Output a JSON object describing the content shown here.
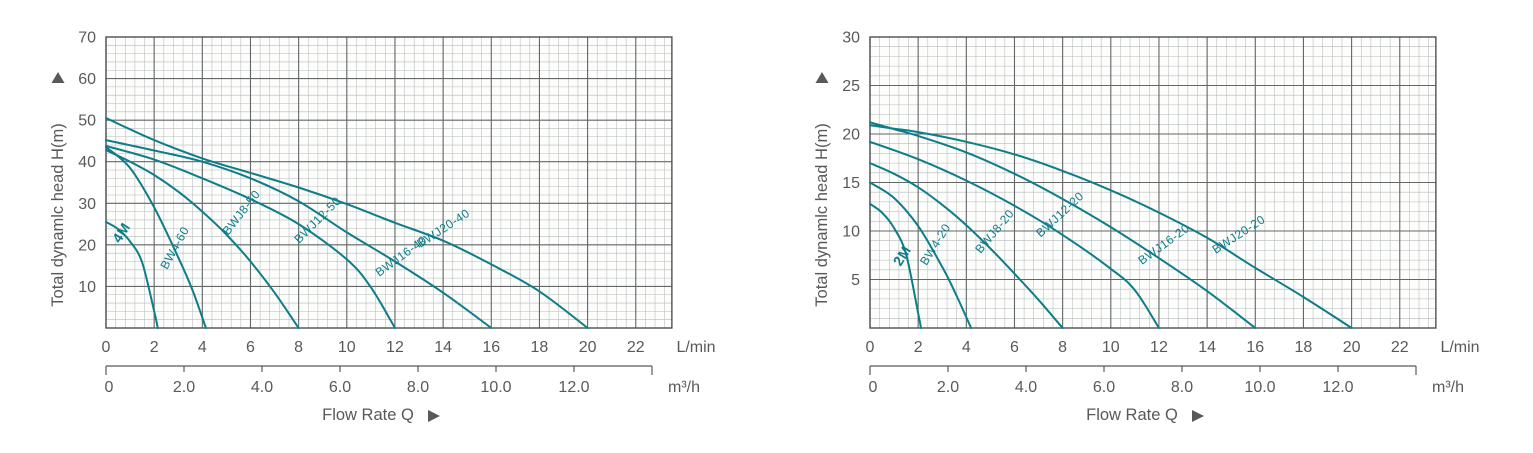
{
  "page": {
    "background": "#ffffff"
  },
  "colors": {
    "curve": "#0e7d8a",
    "axis_text": "#58595b",
    "major_grid": "#636768",
    "minor_grid": "#b6bcbb",
    "border": "#4d5152",
    "plot_bg": "#fdfdfc"
  },
  "chart_data": [
    {
      "type": "line",
      "title": "",
      "y_axis_label": "Total dynamlc head H(m)",
      "x_axis_label": "Flow Rate Q",
      "xlabel_unit_primary": "L/min",
      "xlabel_unit_secondary": "m³/h",
      "ylim": [
        0,
        70
      ],
      "xlim": [
        0,
        23.5
      ],
      "y_major_step": 10,
      "y_minor_step": 2,
      "x_major_step": 2,
      "x_minor_step": 0.4,
      "y_ticks": [
        70,
        60,
        50,
        40,
        30,
        20,
        10
      ],
      "x_ticks": [
        0,
        2,
        4,
        6,
        8,
        10,
        12,
        14,
        16,
        18,
        20,
        22
      ],
      "secondary_ticks": [
        "0",
        "2.0",
        "4.0",
        "6.0",
        "8.0",
        "10.0",
        "12.0"
      ],
      "grid": true,
      "legend_position": "inline-curve-labels",
      "series": [
        {
          "name": "4M",
          "bold": true,
          "points": [
            [
              0,
              25.5
            ],
            [
              0.5,
              23.8
            ],
            [
              1,
              20.8
            ],
            [
              1.5,
              15.8
            ],
            [
              2.0,
              4
            ],
            [
              2.15,
              0
            ]
          ],
          "label": {
            "x": 0.8,
            "y": 22.3,
            "angle": -57
          }
        },
        {
          "name": "BW4-60",
          "bold": false,
          "points": [
            [
              0,
              43.5
            ],
            [
              1,
              38.5
            ],
            [
              2,
              29
            ],
            [
              3,
              17
            ],
            [
              3.6,
              9
            ],
            [
              4.15,
              0
            ]
          ],
          "label": {
            "x": 3.0,
            "y": 18.8,
            "angle": -61
          }
        },
        {
          "name": "BWJ8-50",
          "bold": false,
          "points": [
            [
              0,
              42.8
            ],
            [
              1,
              40
            ],
            [
              2,
              36.8
            ],
            [
              3,
              32.8
            ],
            [
              4,
              28
            ],
            [
              5,
              22.5
            ],
            [
              6,
              16
            ],
            [
              7,
              8.5
            ],
            [
              8,
              0
            ]
          ],
          "label": {
            "x": 5.75,
            "y": 27.2,
            "angle": -52
          }
        },
        {
          "name": "BWJ12-50",
          "bold": false,
          "points": [
            [
              0,
              43.8
            ],
            [
              2,
              40.5
            ],
            [
              4,
              36
            ],
            [
              6,
              31
            ],
            [
              8,
              25
            ],
            [
              10,
              16.5
            ],
            [
              11,
              9.8
            ],
            [
              12,
              0
            ]
          ],
          "label": {
            "x": 8.9,
            "y": 25.3,
            "angle": -45
          }
        },
        {
          "name": "BWJ16-40",
          "bold": false,
          "points": [
            [
              0,
              45.2
            ],
            [
              2,
              42.7
            ],
            [
              4,
              40
            ],
            [
              6,
              36
            ],
            [
              8,
              30.5
            ],
            [
              10,
              23
            ],
            [
              12,
              16
            ],
            [
              14,
              8.5
            ],
            [
              16,
              0
            ]
          ],
          "label": {
            "x": 12.35,
            "y": 16.5,
            "angle": -36
          }
        },
        {
          "name": "BWJ20-40",
          "bold": false,
          "points": [
            [
              0,
              50.5
            ],
            [
              2,
              45.2
            ],
            [
              4,
              40.8
            ],
            [
              6,
              37.3
            ],
            [
              8,
              33.8
            ],
            [
              10,
              29.8
            ],
            [
              12,
              25.3
            ],
            [
              14,
              21
            ],
            [
              16,
              15.3
            ],
            [
              18,
              8.8
            ],
            [
              20,
              0
            ]
          ],
          "label": {
            "x": 14.1,
            "y": 23.2,
            "angle": -33
          }
        }
      ]
    },
    {
      "type": "line",
      "title": "",
      "y_axis_label": "Total dynamlc head H(m)",
      "x_axis_label": "Flow Rate Q",
      "xlabel_unit_primary": "L/min",
      "xlabel_unit_secondary": "m³/h",
      "ylim": [
        0,
        30
      ],
      "xlim": [
        0,
        23.5
      ],
      "y_major_step": 5,
      "y_minor_step": 1,
      "x_major_step": 2,
      "x_minor_step": 0.4,
      "y_ticks": [
        30,
        25,
        20,
        15,
        10,
        5
      ],
      "x_ticks": [
        0,
        2,
        4,
        6,
        8,
        10,
        12,
        14,
        16,
        18,
        20,
        22
      ],
      "secondary_ticks": [
        "0",
        "2.0",
        "4.0",
        "6.0",
        "8.0",
        "10.0",
        "12.0"
      ],
      "grid": true,
      "legend_position": "inline-curve-labels",
      "series": [
        {
          "name": "2M",
          "bold": true,
          "points": [
            [
              0,
              12.8
            ],
            [
              0.5,
              11.9
            ],
            [
              1,
              10.3
            ],
            [
              1.5,
              7.6
            ],
            [
              2.0,
              1.5
            ],
            [
              2.12,
              0
            ]
          ],
          "label": {
            "x": 1.5,
            "y": 7.2,
            "angle": -58
          }
        },
        {
          "name": "BW4-20",
          "bold": false,
          "points": [
            [
              0,
              15.0
            ],
            [
              1,
              13.4
            ],
            [
              2,
              10.5
            ],
            [
              3,
              6.3
            ],
            [
              3.6,
              3.3
            ],
            [
              4.2,
              0
            ]
          ],
          "label": {
            "x": 2.85,
            "y": 8.4,
            "angle": -58
          }
        },
        {
          "name": "BWJ8-20",
          "bold": false,
          "points": [
            [
              0,
              17.0
            ],
            [
              1,
              15.9
            ],
            [
              2,
              14.5
            ],
            [
              3,
              12.7
            ],
            [
              4,
              10.6
            ],
            [
              5,
              8.2
            ],
            [
              6,
              5.6
            ],
            [
              7,
              2.9
            ],
            [
              8,
              0
            ]
          ],
          "label": {
            "x": 5.3,
            "y": 9.7,
            "angle": -50
          }
        },
        {
          "name": "BWJ12-20",
          "bold": false,
          "points": [
            [
              0,
              19.2
            ],
            [
              2,
              17.4
            ],
            [
              4,
              15.2
            ],
            [
              6,
              12.6
            ],
            [
              8,
              9.6
            ],
            [
              10,
              6.1
            ],
            [
              11,
              3.9
            ],
            [
              12,
              0
            ]
          ],
          "label": {
            "x": 8.0,
            "y": 11.4,
            "angle": -43
          }
        },
        {
          "name": "BWJ16-20",
          "bold": false,
          "points": [
            [
              0,
              21.2
            ],
            [
              1,
              20.5
            ],
            [
              2,
              19.8
            ],
            [
              4,
              18.1
            ],
            [
              6,
              15.9
            ],
            [
              8,
              13.3
            ],
            [
              10,
              10.4
            ],
            [
              12,
              7.2
            ],
            [
              14,
              3.8
            ],
            [
              16,
              0
            ]
          ],
          "label": {
            "x": 12.3,
            "y": 8.3,
            "angle": -36
          }
        },
        {
          "name": "BWJ20-20",
          "bold": false,
          "points": [
            [
              0,
              20.9
            ],
            [
              1,
              20.55
            ],
            [
              2,
              20.2
            ],
            [
              4,
              19.2
            ],
            [
              6,
              17.9
            ],
            [
              8,
              16.2
            ],
            [
              10,
              14.2
            ],
            [
              12,
              11.9
            ],
            [
              14,
              9.3
            ],
            [
              16,
              6.2
            ],
            [
              18,
              3.2
            ],
            [
              20,
              0
            ]
          ],
          "label": {
            "x": 15.4,
            "y": 9.3,
            "angle": -33
          }
        }
      ]
    }
  ]
}
